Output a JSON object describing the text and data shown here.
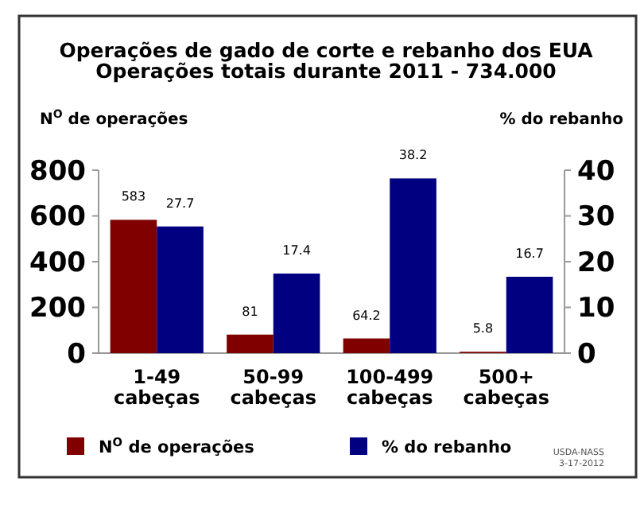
{
  "chart_data": {
    "type": "bar",
    "title": "Operações de gado de corte e rebanho dos EUA\nOperações totais durante 2011 - 734.000",
    "ylabel": "N$^{O}$ de operações",
    "y2label": "% do rebanho",
    "categories": [
      "1-49\ncabeças",
      "50-99\ncabeças",
      "100-499\ncabeças",
      "500+\ncabeças"
    ],
    "series": [
      {
        "name": "N$^{O}$ de operações",
        "color": "#800000",
        "values": [
          583,
          81,
          64.2,
          5.8
        ]
      },
      {
        "name": "% do rebanho",
        "color": "#000080",
        "values": [
          27.7,
          17.4,
          38.2,
          16.7
        ],
        "axis": "y2"
      }
    ],
    "ylim": [
      0,
      800
    ],
    "yticks": [
      0,
      200,
      400,
      600,
      800
    ],
    "y2lim": [
      0,
      40
    ],
    "y2ticks": [
      0,
      10,
      20,
      30,
      40
    ],
    "data_labels": true,
    "grid": false,
    "legend": "bottom",
    "annotations": [
      "USDA-NASS",
      "3-17-2012"
    ]
  }
}
